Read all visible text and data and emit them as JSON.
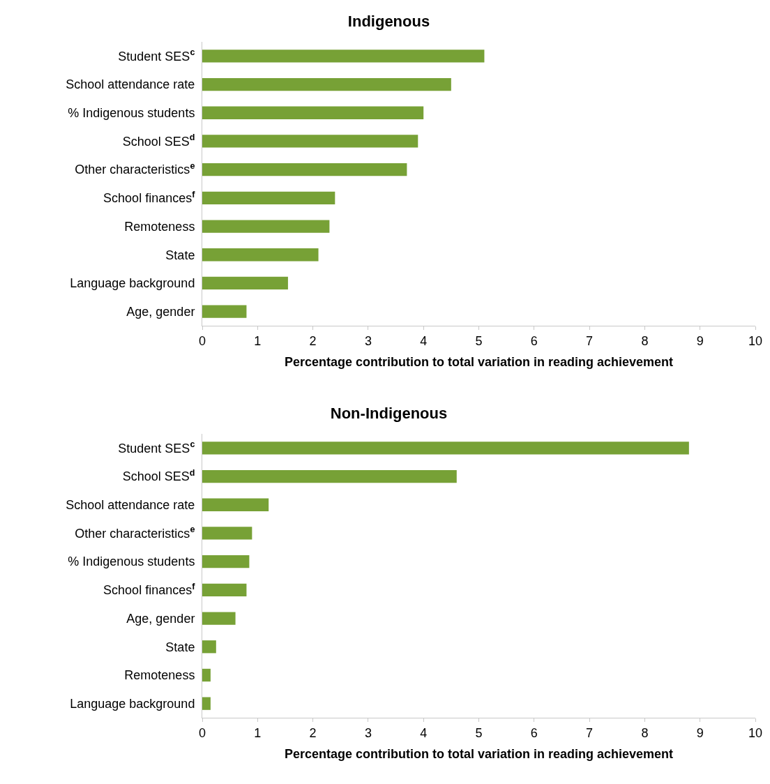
{
  "chart_data": [
    {
      "type": "bar",
      "orientation": "horizontal",
      "title": "Indigenous",
      "xlabel": "Percentage contribution to total variation in reading achievement",
      "categories": [
        "Student SES$^{c}$",
        "School attendance rate",
        "% Indigenous students",
        "School SES$^{d}$",
        "Other characteristics$^{e}$",
        "School finances$^{f}$",
        "Remoteness",
        "State",
        "Language background",
        "Age, gender"
      ],
      "values": [
        5.1,
        4.5,
        4.0,
        3.9,
        3.7,
        2.4,
        2.3,
        2.1,
        1.55,
        0.8
      ],
      "color": "#77a136",
      "xlim": [
        0,
        10
      ],
      "xticks": [
        0,
        1,
        2,
        3,
        4,
        5,
        6,
        7,
        8,
        9,
        10
      ],
      "grid": false
    },
    {
      "type": "bar",
      "orientation": "horizontal",
      "title": "Non-Indigenous",
      "xlabel": "Percentage contribution to total variation in reading achievement",
      "categories": [
        "Student SES$^{c}$",
        "School SES$^{d}$",
        "School attendance rate",
        "Other characteristics$^{e}$",
        "% Indigenous students",
        "School finances$^{f}$",
        "Age, gender",
        "State",
        "Remoteness",
        "Language background"
      ],
      "values": [
        8.8,
        4.6,
        1.2,
        0.9,
        0.85,
        0.8,
        0.6,
        0.25,
        0.15,
        0.15
      ],
      "color": "#77a136",
      "xlim": [
        0,
        10
      ],
      "xticks": [
        0,
        1,
        2,
        3,
        4,
        5,
        6,
        7,
        8,
        9,
        10
      ],
      "grid": false
    }
  ]
}
